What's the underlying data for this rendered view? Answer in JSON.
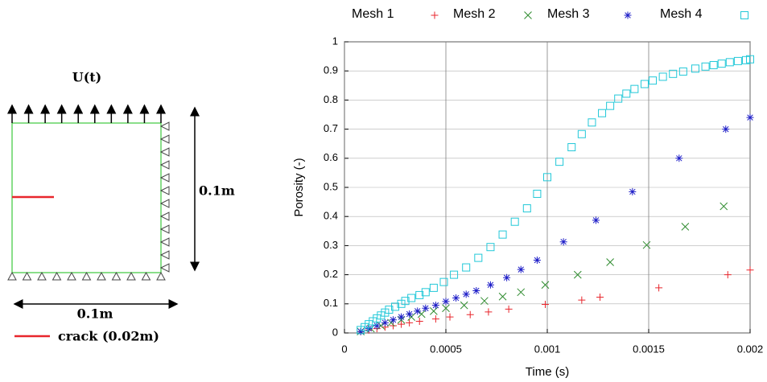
{
  "diagram": {
    "load_label": "U(t)",
    "height_label": "0.1m",
    "width_label": "0.1m",
    "crack_label": "crack (0.02m)"
  },
  "chart_data": {
    "type": "scatter",
    "x_label": "Time (s)",
    "y_label": "Porosity (-)",
    "xlim": [
      0,
      0.002
    ],
    "xticks": [
      0,
      0.0005,
      0.001,
      0.0015,
      0.002
    ],
    "ylim": [
      0,
      1
    ],
    "yticks": [
      0,
      0.1,
      0.2,
      0.3,
      0.4,
      0.5,
      0.6,
      0.7,
      0.8,
      0.9,
      1
    ],
    "grid": true,
    "legend": "top",
    "series": [
      {
        "name": "Mesh 1",
        "color": "#e8262c",
        "marker": "plus",
        "x": [
          8e-05,
          0.00012,
          0.00016,
          0.0002,
          0.00024,
          0.00028,
          0.00032,
          0.00037,
          0.00045,
          0.00052,
          0.00062,
          0.00071,
          0.00081,
          0.00099,
          0.00117,
          0.00126,
          0.00155,
          0.00189,
          0.002
        ],
        "values": [
          0.005,
          0.01,
          0.015,
          0.02,
          0.025,
          0.03,
          0.035,
          0.04,
          0.048,
          0.055,
          0.063,
          0.072,
          0.082,
          0.098,
          0.113,
          0.123,
          0.155,
          0.2,
          0.216
        ]
      },
      {
        "name": "Mesh 2",
        "color": "#2e8b2e",
        "marker": "cross",
        "x": [
          8e-05,
          0.00013,
          0.00018,
          0.00023,
          0.00028,
          0.00033,
          0.00038,
          0.00044,
          0.0005,
          0.00059,
          0.00069,
          0.00078,
          0.00087,
          0.00099,
          0.00115,
          0.00131,
          0.00149,
          0.00168,
          0.00187
        ],
        "values": [
          0.005,
          0.015,
          0.025,
          0.035,
          0.045,
          0.055,
          0.065,
          0.075,
          0.085,
          0.095,
          0.11,
          0.125,
          0.14,
          0.165,
          0.2,
          0.243,
          0.302,
          0.365,
          0.435
        ]
      },
      {
        "name": "Mesh 3",
        "color": "#1f1fc8",
        "marker": "star",
        "x": [
          8e-05,
          0.00012,
          0.00016,
          0.0002,
          0.00024,
          0.00028,
          0.00032,
          0.00036,
          0.0004,
          0.00045,
          0.0005,
          0.00055,
          0.0006,
          0.00065,
          0.00072,
          0.0008,
          0.00087,
          0.00095,
          0.00108,
          0.00124,
          0.00142,
          0.00165,
          0.00188,
          0.002
        ],
        "values": [
          0.005,
          0.015,
          0.025,
          0.035,
          0.045,
          0.055,
          0.065,
          0.075,
          0.085,
          0.095,
          0.108,
          0.12,
          0.133,
          0.145,
          0.165,
          0.19,
          0.218,
          0.25,
          0.313,
          0.387,
          0.485,
          0.6,
          0.7,
          0.74
        ]
      },
      {
        "name": "Mesh 4",
        "color": "#22c8d8",
        "marker": "square",
        "x": [
          8e-05,
          0.0001,
          0.00012,
          0.00014,
          0.00016,
          0.00018,
          0.0002,
          0.00022,
          0.00025,
          0.00028,
          0.0003,
          0.00033,
          0.00037,
          0.0004,
          0.00044,
          0.00049,
          0.00054,
          0.0006,
          0.00066,
          0.00072,
          0.00078,
          0.00084,
          0.0009,
          0.00095,
          0.001,
          0.00106,
          0.00112,
          0.00117,
          0.00122,
          0.00127,
          0.00131,
          0.00135,
          0.00139,
          0.00143,
          0.00148,
          0.00152,
          0.00157,
          0.00162,
          0.00167,
          0.00173,
          0.00178,
          0.00182,
          0.00186,
          0.0019,
          0.00194,
          0.00198,
          0.002
        ],
        "values": [
          0.01,
          0.02,
          0.03,
          0.04,
          0.05,
          0.06,
          0.07,
          0.08,
          0.09,
          0.1,
          0.11,
          0.12,
          0.13,
          0.14,
          0.155,
          0.175,
          0.2,
          0.225,
          0.258,
          0.295,
          0.338,
          0.382,
          0.428,
          0.478,
          0.535,
          0.588,
          0.638,
          0.683,
          0.723,
          0.755,
          0.78,
          0.805,
          0.822,
          0.838,
          0.855,
          0.867,
          0.88,
          0.89,
          0.898,
          0.908,
          0.915,
          0.92,
          0.925,
          0.93,
          0.934,
          0.937,
          0.94
        ]
      }
    ]
  }
}
